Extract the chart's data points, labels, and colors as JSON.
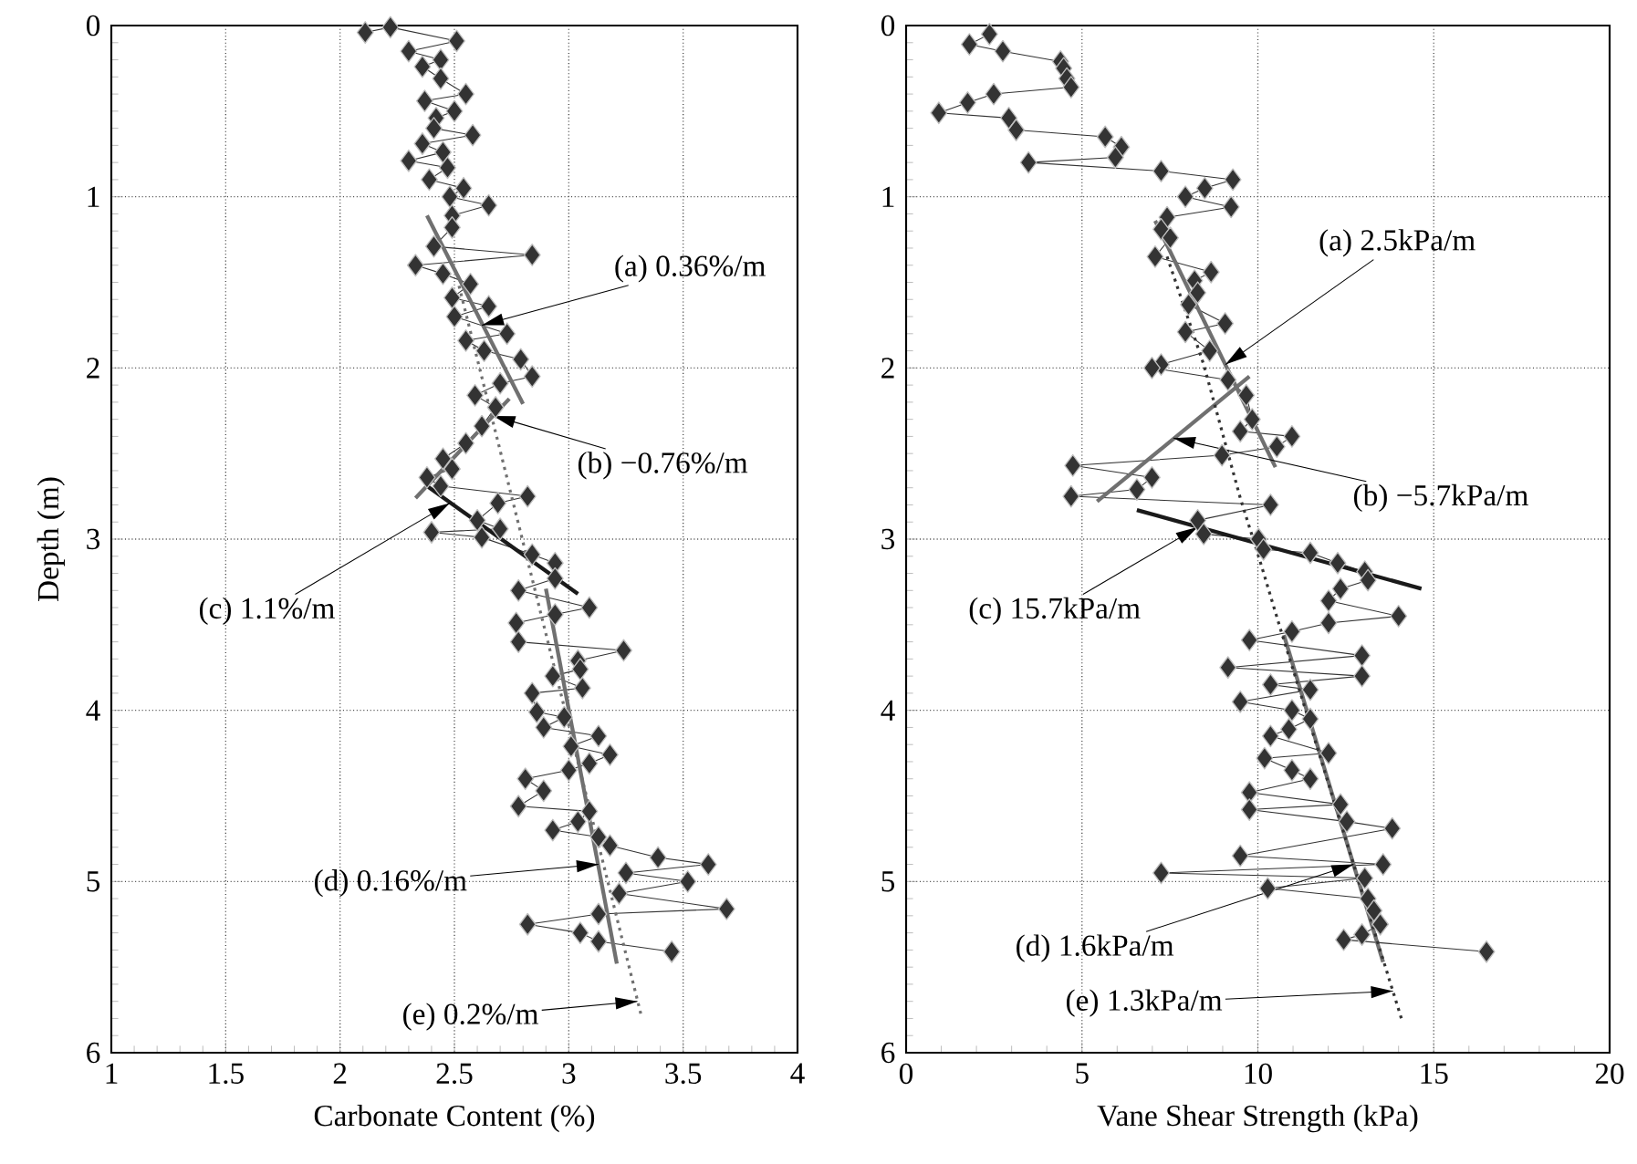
{
  "chart_data": [
    {
      "type": "line",
      "xlabel": "Carbonate Content (%)",
      "ylabel": "Depth (m)",
      "xlim": [
        1,
        4
      ],
      "ylim": [
        6,
        0
      ],
      "xticks": [
        1,
        1.5,
        2,
        2.5,
        3,
        3.5,
        4
      ],
      "yticks": [
        0,
        1,
        2,
        3,
        4,
        5,
        6
      ],
      "grid": true,
      "marker": "diamond",
      "series": [
        {
          "color": "#333333",
          "x": [
            2.11,
            2.22,
            2.51,
            2.3,
            2.44,
            2.36,
            2.44,
            2.55,
            2.37,
            2.5,
            2.42,
            2.41,
            2.58,
            2.36,
            2.45,
            2.3,
            2.47,
            2.39,
            2.54,
            2.48,
            2.65,
            2.49,
            2.49,
            2.41,
            2.84,
            2.33,
            2.45,
            2.57,
            2.49,
            2.65,
            2.5,
            2.73,
            2.55,
            2.63,
            2.79,
            2.84,
            2.7,
            2.59,
            2.68,
            2.62,
            2.55,
            2.45,
            2.49,
            2.38,
            2.44,
            2.82,
            2.69,
            2.6,
            2.7,
            2.4,
            2.62,
            2.84,
            2.94,
            2.94,
            2.78,
            3.09,
            2.94,
            2.77,
            2.78,
            3.24,
            3.04,
            3.05,
            2.93,
            3.06,
            2.84,
            2.86,
            2.98,
            2.89,
            3.13,
            3.01,
            3.18,
            3.09,
            3.0,
            2.81,
            2.89,
            2.78,
            3.09,
            3.04,
            2.93,
            3.13,
            3.18,
            3.39,
            3.61,
            3.25,
            3.52,
            3.22,
            3.69,
            3.13,
            2.82,
            3.05,
            3.13,
            3.45
          ],
          "values": [
            0.04,
            0.01,
            0.09,
            0.15,
            0.2,
            0.24,
            0.31,
            0.4,
            0.44,
            0.5,
            0.54,
            0.6,
            0.64,
            0.69,
            0.74,
            0.79,
            0.83,
            0.9,
            0.95,
            1.0,
            1.05,
            1.11,
            1.18,
            1.29,
            1.34,
            1.4,
            1.45,
            1.51,
            1.59,
            1.64,
            1.7,
            1.8,
            1.84,
            1.9,
            1.95,
            2.05,
            2.09,
            2.16,
            2.23,
            2.34,
            2.44,
            2.53,
            2.59,
            2.64,
            2.69,
            2.75,
            2.79,
            2.89,
            2.94,
            2.96,
            2.99,
            3.09,
            3.14,
            3.23,
            3.3,
            3.4,
            3.44,
            3.49,
            3.6,
            3.65,
            3.71,
            3.76,
            3.8,
            3.87,
            3.9,
            4.01,
            4.04,
            4.1,
            4.15,
            4.21,
            4.26,
            4.31,
            4.35,
            4.4,
            4.47,
            4.56,
            4.59,
            4.65,
            4.7,
            4.74,
            4.79,
            4.86,
            4.9,
            4.95,
            5.0,
            5.07,
            5.16,
            5.19,
            5.25,
            5.3,
            5.35,
            5.41
          ]
        },
        {
          "color": "#707070",
          "marker": "none",
          "x": [
            2.38,
            2.8
          ],
          "values": [
            1.11,
            2.21
          ]
        },
        {
          "color": "#707070",
          "marker": "none",
          "x": [
            2.74,
            2.33
          ],
          "values": [
            2.18,
            2.76
          ]
        },
        {
          "color": "#1a1a1a",
          "marker": "none",
          "x": [
            2.38,
            3.04
          ],
          "values": [
            2.69,
            3.32
          ]
        },
        {
          "color": "#707070",
          "marker": "none",
          "x": [
            2.9,
            3.21
          ],
          "values": [
            3.29,
            5.48
          ]
        },
        {
          "color": "#707070",
          "marker": "none",
          "line_style": "dotted",
          "x": [
            2.52,
            3.32
          ],
          "values": [
            1.52,
            5.8
          ]
        }
      ],
      "annotations": [
        {
          "text": "(a) 0.36%/m",
          "x": 2.62,
          "y": 1.75
        },
        {
          "text": "(b) −0.76%/m",
          "x": 2.67,
          "y": 2.28
        },
        {
          "text": "(c) 1.1%/m",
          "x": 2.48,
          "y": 2.79
        },
        {
          "text": "(d) 0.16%/m",
          "x": 3.13,
          "y": 4.9
        },
        {
          "text": "(e) 0.2%/m",
          "x": 3.3,
          "y": 5.7
        }
      ]
    },
    {
      "type": "line",
      "xlabel": "Vane Shear Strength (kPa)",
      "xlim": [
        0,
        20
      ],
      "ylim": [
        6,
        0
      ],
      "xticks": [
        0,
        5,
        10,
        15,
        20
      ],
      "yticks": [
        0,
        1,
        2,
        3,
        4,
        5,
        6
      ],
      "grid": true,
      "marker": "diamond",
      "series": [
        {
          "color": "#333333",
          "x": [
            2.37,
            1.8,
            2.75,
            4.39,
            4.48,
            4.57,
            4.69,
            2.49,
            1.75,
            0.93,
            2.92,
            3.13,
            5.66,
            6.12,
            5.95,
            3.48,
            7.25,
            9.29,
            8.49,
            7.94,
            9.24,
            7.42,
            7.25,
            7.51,
            7.08,
            8.67,
            8.2,
            8.29,
            8.03,
            9.07,
            7.94,
            8.63,
            7.25,
            6.99,
            9.15,
            9.67,
            9.84,
            9.5,
            10.97,
            10.54,
            8.98,
            4.74,
            6.99,
            6.56,
            4.69,
            10.36,
            8.29,
            8.46,
            10.02,
            10.16,
            11.49,
            12.27,
            13.04,
            13.13,
            12.35,
            12.01,
            14.0,
            12.01,
            10.97,
            9.76,
            12.96,
            9.15,
            12.96,
            10.36,
            11.49,
            9.5,
            10.97,
            11.49,
            10.88,
            10.36,
            12.01,
            10.19,
            10.97,
            11.49,
            9.76,
            12.35,
            9.76,
            12.53,
            13.82,
            9.5,
            13.56,
            7.25,
            13.04,
            10.28,
            13.13,
            13.3,
            13.48,
            12.96,
            12.44,
            16.5
          ],
          "values": [
            0.05,
            0.11,
            0.15,
            0.21,
            0.25,
            0.31,
            0.36,
            0.4,
            0.45,
            0.51,
            0.54,
            0.61,
            0.65,
            0.71,
            0.77,
            0.8,
            0.85,
            0.9,
            0.95,
            1.0,
            1.06,
            1.12,
            1.19,
            1.24,
            1.35,
            1.44,
            1.49,
            1.56,
            1.63,
            1.74,
            1.79,
            1.9,
            1.98,
            2.0,
            2.07,
            2.16,
            2.3,
            2.37,
            2.4,
            2.46,
            2.51,
            2.57,
            2.64,
            2.71,
            2.75,
            2.8,
            2.89,
            2.97,
            3.0,
            3.06,
            3.08,
            3.14,
            3.19,
            3.24,
            3.29,
            3.36,
            3.45,
            3.49,
            3.54,
            3.59,
            3.68,
            3.75,
            3.8,
            3.85,
            3.88,
            3.95,
            4.0,
            4.05,
            4.11,
            4.15,
            4.25,
            4.28,
            4.35,
            4.4,
            4.48,
            4.55,
            4.58,
            4.65,
            4.69,
            4.85,
            4.9,
            4.95,
            4.98,
            5.04,
            5.1,
            5.17,
            5.25,
            5.31,
            5.34,
            5.41
          ]
        },
        {
          "color": "#707070",
          "marker": "none",
          "x": [
            7.08,
            10.5
          ],
          "values": [
            1.14,
            2.58
          ]
        },
        {
          "color": "#707070",
          "marker": "none",
          "x": [
            9.76,
            5.43
          ],
          "values": [
            2.05,
            2.78
          ]
        },
        {
          "color": "#1a1a1a",
          "marker": "none",
          "x": [
            6.56,
            14.65
          ],
          "values": [
            2.83,
            3.29
          ]
        },
        {
          "color": "#707070",
          "marker": "none",
          "x": [
            10.74,
            13.56
          ],
          "values": [
            3.56,
            5.47
          ]
        },
        {
          "color": "#333333",
          "marker": "none",
          "line_style": "dotted",
          "x": [
            7.42,
            8.46,
            9.5,
            10.02,
            10.62,
            14.08
          ],
          "values": [
            1.35,
            1.98,
            2.76,
            3.1,
            3.51,
            5.8
          ]
        }
      ],
      "annotations": [
        {
          "text": "(a) 2.5kPa/m",
          "x": 9.08,
          "y": 1.98
        },
        {
          "text": "(b) −5.7kPa/m",
          "x": 7.6,
          "y": 2.41
        },
        {
          "text": "(c) 15.7kPa/m",
          "x": 8.29,
          "y": 2.93
        },
        {
          "text": "(d) 1.6kPa/m",
          "x": 12.72,
          "y": 4.9
        },
        {
          "text": "(e) 1.3kPa/m",
          "x": 13.84,
          "y": 5.64
        }
      ]
    }
  ]
}
